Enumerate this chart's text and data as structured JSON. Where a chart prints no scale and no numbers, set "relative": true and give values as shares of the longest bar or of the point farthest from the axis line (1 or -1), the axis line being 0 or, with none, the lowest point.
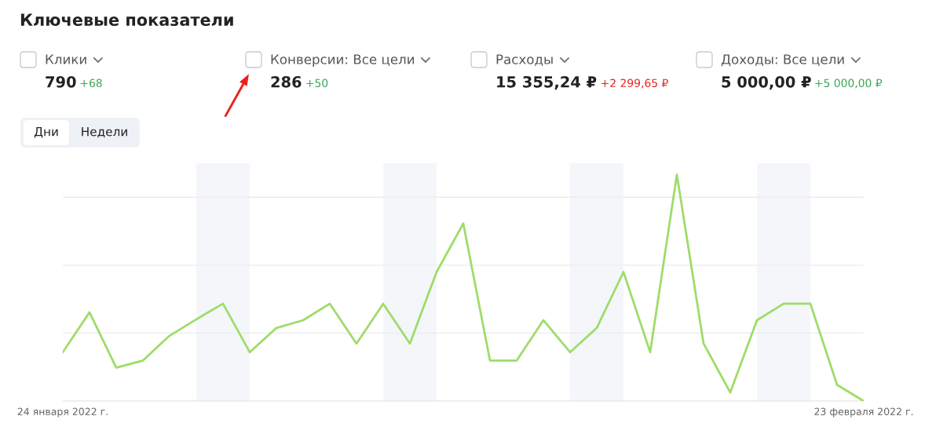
{
  "chart_data": [
    {
      "type": "other",
      "title": "Ключевые показатели",
      "annotations": [
        "Клики",
        "790",
        "+68",
        "Конверсии: Все цели",
        "286",
        "+50",
        "Расходы",
        "15 355,24 ₽",
        "+2 299,65 ₽",
        "Доходы: Все цели",
        "5 000,00 ₽",
        "+5 000,00 ₽",
        "Дни",
        "Недели"
      ],
      "colors": [
        "#555555",
        "#222222",
        "#3aa655",
        "#555555",
        "#222222",
        "#3aa655",
        "#555555",
        "#222222",
        "#e8221c",
        "#555555",
        "#222222",
        "#3aa655",
        "#222222",
        "#222222"
      ]
    },
    {
      "type": "line",
      "relative": true,
      "x": [
        "2022-01-24",
        "2022-01-25",
        "2022-01-26",
        "2022-01-27",
        "2022-01-28",
        "2022-01-29",
        "2022-01-30",
        "2022-01-31",
        "2022-02-01",
        "2022-02-02",
        "2022-02-03",
        "2022-02-04",
        "2022-02-05",
        "2022-02-06",
        "2022-02-07",
        "2022-02-08",
        "2022-02-09",
        "2022-02-10",
        "2022-02-11",
        "2022-02-12",
        "2022-02-13",
        "2022-02-14",
        "2022-02-15",
        "2022-02-16",
        "2022-02-17",
        "2022-02-18",
        "2022-02-19",
        "2022-02-20",
        "2022-02-21",
        "2022-02-22",
        "2022-02-23"
      ],
      "series": [
        {
          "color": "#9edc69",
          "values": [
            0.216,
            0.392,
            0.148,
            0.179,
            0.289,
            0.361,
            0.43,
            0.216,
            0.323,
            0.357,
            0.43,
            0.254,
            0.43,
            0.254,
            0.57,
            0.784,
            0.179,
            0.179,
            0.357,
            0.216,
            0.323,
            0.57,
            0.216,
            1,
            0.254,
            0.038,
            0.357,
            0.43,
            0.43,
            0.072,
            0
          ]
        }
      ],
      "xlim": [
        "2022-01-24",
        "2022-02-23"
      ],
      "xticks": [
        {
          "value": "2022-01-24",
          "label": "24 января 2022 г."
        },
        {
          "value": "2022-02-23",
          "label": "23 февраля 2022 г."
        }
      ],
      "bands": [
        {
          "axis": "x",
          "from": "2022-01-29",
          "to": "2022-01-31",
          "color": "#f4f6fa"
        },
        {
          "axis": "x",
          "from": "2022-02-05",
          "to": "2022-02-07",
          "color": "#f4f6fa"
        },
        {
          "axis": "x",
          "from": "2022-02-12",
          "to": "2022-02-14",
          "color": "#f4f6fa"
        },
        {
          "axis": "x",
          "from": "2022-02-19",
          "to": "2022-02-21",
          "color": "#f4f6fa"
        }
      ],
      "grid": "y",
      "marker": "none",
      "line_style": "solid"
    }
  ]
}
